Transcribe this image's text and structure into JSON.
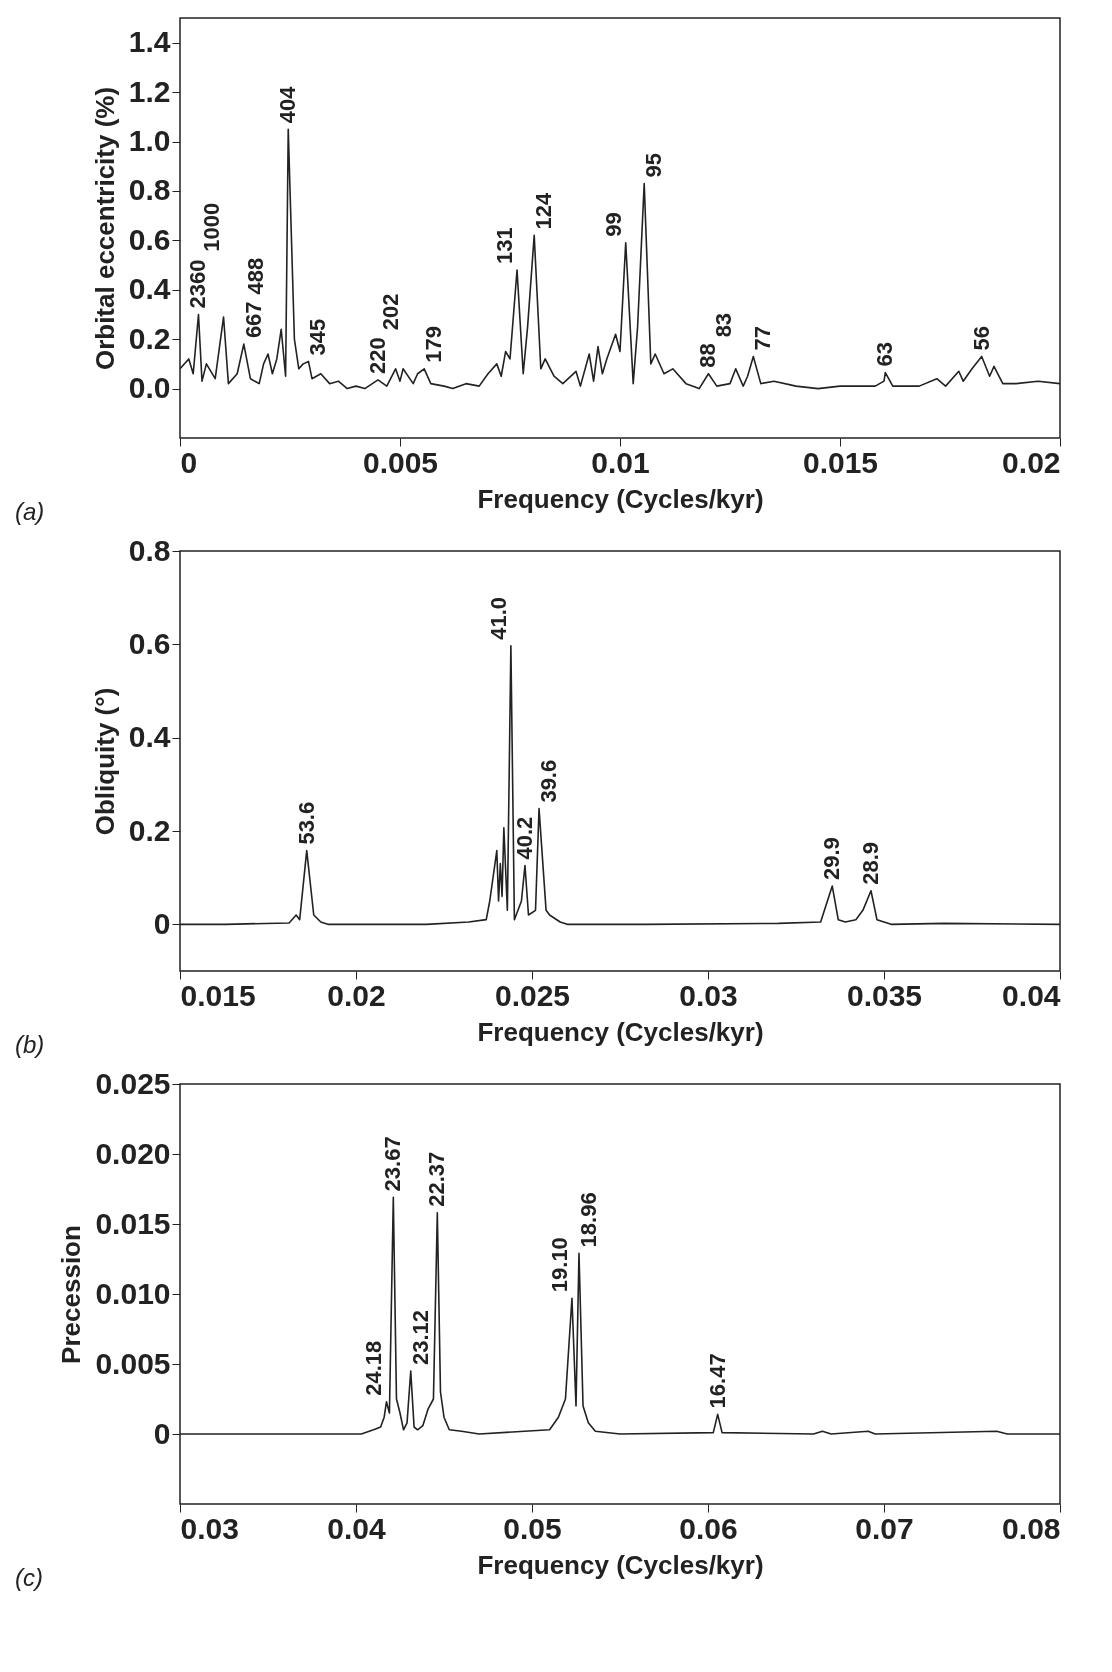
{
  "chart_data": [
    {
      "type": "line",
      "xlabel": "Frequency  (Cycles/kyr)",
      "ylabel": "Orbital eccentricity (%)",
      "xlim": [
        0,
        0.02
      ],
      "xticks": [
        0,
        0.005,
        0.01,
        0.015,
        0.02
      ],
      "ylim": [
        -0.2,
        1.5
      ],
      "yticks": [
        {
          "value": 0,
          "label": "0.0"
        },
        0.2,
        0.4,
        0.6,
        0.8,
        {
          "value": 1,
          "label": "1.0"
        },
        1.2,
        1.4
      ],
      "color": "#222222",
      "x": [
        0,
        0.0002,
        0.0003,
        0.00042,
        0.0005,
        0.0006,
        0.0008,
        0.00099,
        0.0011,
        0.0013,
        0.00145,
        0.0016,
        0.0018,
        0.0019,
        0.002,
        0.0021,
        0.0022,
        0.0023,
        0.0024,
        0.00246,
        0.0026,
        0.0027,
        0.0028,
        0.00292,
        0.003,
        0.0032,
        0.0034,
        0.0036,
        0.0038,
        0.004,
        0.0042,
        0.0045,
        0.0047,
        0.0049,
        0.005,
        0.00507,
        0.0053,
        0.0054,
        0.00555,
        0.0057,
        0.006,
        0.0062,
        0.0065,
        0.0068,
        0.007,
        0.0072,
        0.0073,
        0.0074,
        0.0075,
        0.00766,
        0.0078,
        0.0079,
        0.00805,
        0.0082,
        0.0083,
        0.0085,
        0.0087,
        0.009,
        0.0091,
        0.0093,
        0.0094,
        0.0095,
        0.0096,
        0.0097,
        0.0099,
        0.01,
        0.01013,
        0.0103,
        0.0104,
        0.01055,
        0.0107,
        0.0108,
        0.011,
        0.0112,
        0.0115,
        0.0118,
        0.01201,
        0.0122,
        0.0125,
        0.01263,
        0.0128,
        0.0129,
        0.01303,
        0.0132,
        0.0135,
        0.014,
        0.0145,
        0.015,
        0.0158,
        0.016,
        0.01603,
        0.0162,
        0.0168,
        0.0172,
        0.0174,
        0.0177,
        0.0178,
        0.018,
        0.01822,
        0.0184,
        0.0185,
        0.0187,
        0.019,
        0.0195,
        0.02
      ],
      "values": [
        0.08,
        0.12,
        0.06,
        0.3,
        0.03,
        0.1,
        0.04,
        0.29,
        0.02,
        0.06,
        0.18,
        0.04,
        0.02,
        0.1,
        0.14,
        0.06,
        0.12,
        0.24,
        0.05,
        1.05,
        0.2,
        0.08,
        0.1,
        0.11,
        0.04,
        0.06,
        0.02,
        0.03,
        0,
        0.01,
        0,
        0.035,
        0.01,
        0.08,
        0.03,
        0.08,
        0.02,
        0.06,
        0.08,
        0.02,
        0.01,
        0,
        0.02,
        0.01,
        0.06,
        0.1,
        0.05,
        0.15,
        0.12,
        0.48,
        0.06,
        0.25,
        0.62,
        0.08,
        0.12,
        0.05,
        0.02,
        0.07,
        0.01,
        0.14,
        0.03,
        0.17,
        0.06,
        0.12,
        0.22,
        0.15,
        0.59,
        0.02,
        0.25,
        0.83,
        0.1,
        0.14,
        0.06,
        0.08,
        0.02,
        0,
        0.06,
        0.01,
        0.02,
        0.08,
        0.01,
        0.05,
        0.13,
        0.02,
        0.03,
        0.01,
        0,
        0.01,
        0.01,
        0.03,
        0.065,
        0.01,
        0.01,
        0.04,
        0.01,
        0.07,
        0.03,
        0.08,
        0.13,
        0.05,
        0.09,
        0.02,
        0.02,
        0.03,
        0.02
      ],
      "annotations": [
        {
          "text": "2360",
          "x": 0.00042,
          "y": 0.3
        },
        {
          "text": "1000",
          "x": 0.00099,
          "y": 0.29
        },
        {
          "text": "667",
          "x": 0.00145,
          "y": 0.18
        },
        {
          "text": "488",
          "x": 0.002,
          "y": 0.14
        },
        {
          "text": "404",
          "x": 0.00246,
          "y": 1.05
        },
        {
          "text": "345",
          "x": 0.00292,
          "y": 0.11
        },
        {
          "text": "220",
          "x": 0.0045,
          "y": 0.035
        },
        {
          "text": "202",
          "x": 0.00507,
          "y": 0.08
        },
        {
          "text": "179",
          "x": 0.00555,
          "y": 0.08
        },
        {
          "text": "131",
          "x": 0.00766,
          "y": 0.48
        },
        {
          "text": "124",
          "x": 0.00805,
          "y": 0.62
        },
        {
          "text": "99",
          "x": 0.01013,
          "y": 0.59
        },
        {
          "text": "95",
          "x": 0.01055,
          "y": 0.83
        },
        {
          "text": "88",
          "x": 0.01201,
          "y": 0.06
        },
        {
          "text": "83",
          "x": 0.01263,
          "y": 0.08
        },
        {
          "text": "77",
          "x": 0.01303,
          "y": 0.13
        },
        {
          "text": "63",
          "x": 0.01603,
          "y": 0.065
        },
        {
          "text": "56",
          "x": 0.01822,
          "y": 0.13
        },
        "(a)"
      ]
    },
    {
      "type": "line",
      "xlabel": "Frequency  (Cycles/kyr)",
      "ylabel": "Obliquity (°)",
      "xlim": [
        0.015,
        0.04
      ],
      "xticks": [
        0.015,
        0.02,
        0.025,
        0.03,
        0.035,
        0.04
      ],
      "ylim": [
        -0.1,
        0.8
      ],
      "yticks": [
        0,
        0.2,
        0.4,
        0.6,
        0.8
      ],
      "color": "#222222",
      "x": [
        0.015,
        0.0163,
        0.0181,
        0.0183,
        0.0184,
        0.0186,
        0.0188,
        0.019,
        0.0192,
        0.022,
        0.0232,
        0.0237,
        0.0238,
        0.024,
        0.02405,
        0.0241,
        0.02415,
        0.0242,
        0.0243,
        0.0244,
        0.0245,
        0.0247,
        0.0248,
        0.0249,
        0.0251,
        0.0252,
        0.0254,
        0.0255,
        0.0258,
        0.026,
        0.0282,
        0.032,
        0.0332,
        0.03353,
        0.0337,
        0.0339,
        0.0342,
        0.0344,
        0.03463,
        0.0348,
        0.035,
        0.0352,
        0.0367,
        0.04
      ],
      "values": [
        0,
        0,
        0.003,
        0.02,
        0.01,
        0.158,
        0.02,
        0.005,
        0,
        0,
        0.005,
        0.01,
        0.05,
        0.158,
        0.05,
        0.13,
        0.06,
        0.207,
        0.03,
        0.597,
        0.01,
        0.05,
        0.126,
        0.02,
        0.03,
        0.248,
        0.03,
        0.02,
        0.005,
        0,
        0,
        0.002,
        0.005,
        0.082,
        0.01,
        0.005,
        0.01,
        0.03,
        0.072,
        0.01,
        0.005,
        0,
        0.002,
        0
      ],
      "annotations": [
        {
          "text": "53.6",
          "x": 0.0186,
          "y": 0.158
        },
        {
          "text": "41.0",
          "x": 0.0244,
          "y": 0.597
        },
        {
          "text": "40.2",
          "x": 0.0248,
          "y": 0.126
        },
        {
          "text": "39.6",
          "x": 0.0252,
          "y": 0.248
        },
        {
          "text": "29.9",
          "x": 0.03353,
          "y": 0.082
        },
        {
          "text": "28.9",
          "x": 0.03463,
          "y": 0.072
        },
        "(b)"
      ]
    },
    {
      "type": "line",
      "xlabel": "Frequency  (Cycles/kyr)",
      "ylabel": "Precession",
      "xlim": [
        0.03,
        0.08
      ],
      "xticks": [
        0.03,
        0.04,
        0.05,
        0.06,
        0.07,
        0.08
      ],
      "ylim": [
        -0.005,
        0.025
      ],
      "yticks": [
        0,
        0.005,
        {
          "value": 0.01,
          "label": "0.010"
        },
        0.015,
        {
          "value": 0.02,
          "label": "0.020"
        },
        0.025
      ],
      "color": "#222222",
      "x": [
        0.03,
        0.0403,
        0.041,
        0.0414,
        0.0416,
        0.04173,
        0.0419,
        0.04212,
        0.0423,
        0.0425,
        0.0427,
        0.0429,
        0.04311,
        0.0433,
        0.0435,
        0.0438,
        0.0441,
        0.0444,
        0.04462,
        0.0448,
        0.045,
        0.0453,
        0.046,
        0.047,
        0.051,
        0.0515,
        0.0519,
        0.05227,
        0.0525,
        0.05267,
        0.0529,
        0.0532,
        0.0536,
        0.055,
        0.0603,
        0.06055,
        0.0608,
        0.066,
        0.0665,
        0.067,
        0.0691,
        0.0695,
        0.0764,
        0.077,
        0.08
      ],
      "values": [
        0,
        0,
        0.0003,
        0.0005,
        0.0012,
        0.0023,
        0.0015,
        0.0169,
        0.0025,
        0.0015,
        0.0003,
        0.0008,
        0.0045,
        0.0005,
        0.0003,
        0.0006,
        0.0018,
        0.0025,
        0.0158,
        0.003,
        0.0012,
        0.0003,
        0.0002,
        0,
        0.0003,
        0.0012,
        0.0025,
        0.0097,
        0.002,
        0.0129,
        0.002,
        0.0008,
        0.0002,
        0,
        0.0001,
        0.0014,
        0.0001,
        0,
        0.0002,
        0,
        0.0002,
        0,
        0.0002,
        0,
        0
      ],
      "annotations": [
        {
          "text": "24.18",
          "x": 0.04173,
          "y": 0.0023
        },
        {
          "text": "23.67",
          "x": 0.04212,
          "y": 0.0169
        },
        {
          "text": "23.12",
          "x": 0.04311,
          "y": 0.0045
        },
        {
          "text": "22.37",
          "x": 0.04462,
          "y": 0.0158
        },
        {
          "text": "19.10",
          "x": 0.05227,
          "y": 0.0097
        },
        {
          "text": "18.96",
          "x": 0.05267,
          "y": 0.0129
        },
        {
          "text": "16.47",
          "x": 0.06055,
          "y": 0.0014
        },
        "(c)"
      ]
    }
  ]
}
